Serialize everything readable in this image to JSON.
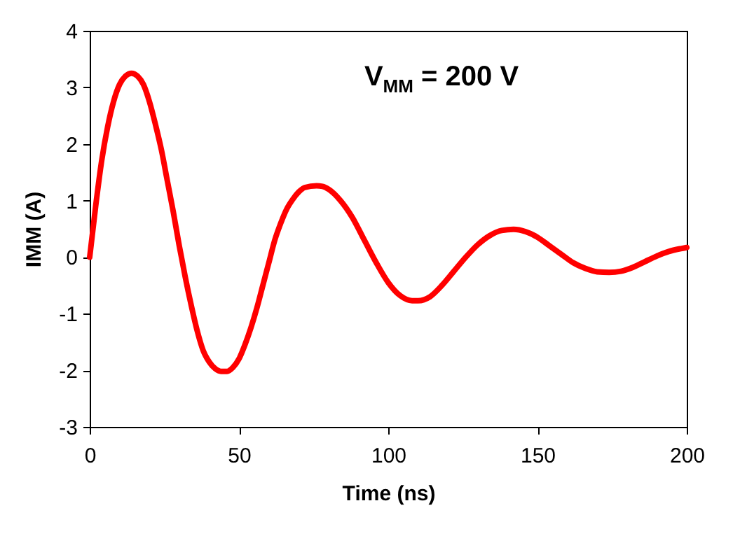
{
  "chart_data": {
    "type": "line",
    "xlabel": "Time (ns)",
    "ylabel": "IMM (A)",
    "annotations": [
      "V$_{MM}$ = 200 V"
    ],
    "x": [
      0,
      2,
      4,
      6,
      8,
      10,
      12,
      14,
      16,
      18,
      20,
      22,
      24,
      26,
      28,
      30,
      32,
      34,
      36,
      38,
      40,
      42,
      44,
      46,
      48,
      50,
      52,
      54,
      56,
      58,
      60,
      62,
      64,
      66,
      68,
      70,
      72,
      76,
      78,
      80,
      84,
      88,
      92,
      96,
      100,
      104,
      108,
      110,
      114,
      118,
      122,
      126,
      130,
      134,
      138,
      142,
      146,
      150,
      154,
      158,
      162,
      166,
      170,
      174,
      178,
      182,
      186,
      190,
      194,
      198,
      200
    ],
    "series": [
      {
        "color": "#ff0000",
        "values": [
          0,
          0.9,
          1.7,
          2.3,
          2.75,
          3.05,
          3.2,
          3.25,
          3.2,
          3.05,
          2.75,
          2.35,
          1.9,
          1.35,
          0.8,
          0.2,
          -0.35,
          -0.85,
          -1.3,
          -1.65,
          -1.85,
          -1.97,
          -2.02,
          -2.02,
          -1.95,
          -1.8,
          -1.55,
          -1.25,
          -0.9,
          -0.5,
          -0.1,
          0.3,
          0.6,
          0.85,
          1.02,
          1.15,
          1.23,
          1.26,
          1.25,
          1.2,
          1.0,
          0.7,
          0.3,
          -0.1,
          -0.45,
          -0.68,
          -0.77,
          -0.77,
          -0.7,
          -0.5,
          -0.25,
          0.0,
          0.22,
          0.38,
          0.47,
          0.49,
          0.45,
          0.35,
          0.2,
          0.05,
          -0.1,
          -0.2,
          -0.26,
          -0.27,
          -0.25,
          -0.18,
          -0.08,
          0.02,
          0.1,
          0.15,
          0.17
        ]
      }
    ],
    "xlim": [
      0,
      200
    ],
    "xticks": [
      0,
      50,
      100,
      150,
      200
    ],
    "ylim": [
      -3,
      4
    ],
    "yticks": [
      -3,
      -2,
      -1,
      0,
      1,
      2,
      3,
      4
    ],
    "grid": false,
    "marker": "none",
    "line_style": "solid"
  }
}
